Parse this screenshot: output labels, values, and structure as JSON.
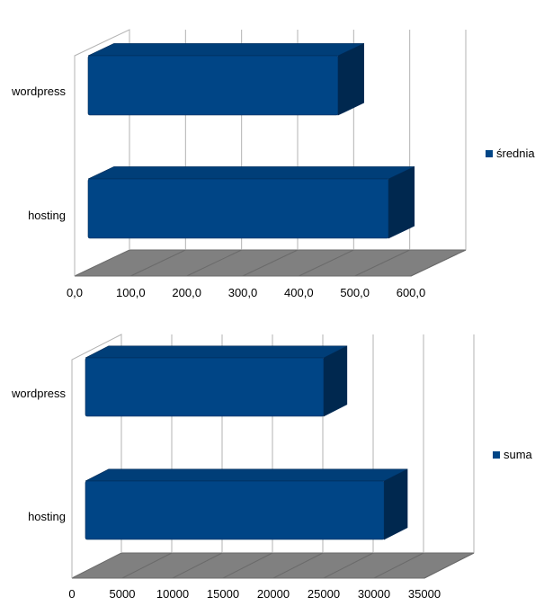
{
  "colors": {
    "bar_front": "#004586",
    "bar_top": "#003e78",
    "bar_side": "#00284f",
    "bar_edge": "#002a55",
    "floor": "#808080",
    "floor_stroke": "#6a6a6a",
    "grid": "#b3b3b3",
    "wall": "#b3b3b3"
  },
  "chart_data": [
    {
      "type": "bar",
      "orientation": "horizontal",
      "style": "3d",
      "categories": [
        "wordpress",
        "hosting"
      ],
      "series": [
        {
          "name": "średnia",
          "values": [
            470,
            560
          ]
        }
      ],
      "xlim": [
        0,
        600
      ],
      "xticks": [
        "0,0",
        "100,0",
        "200,0",
        "300,0",
        "400,0",
        "500,0",
        "600,0"
      ],
      "grid": true,
      "legend": "right"
    },
    {
      "type": "bar",
      "orientation": "horizontal",
      "style": "3d",
      "categories": [
        "wordpress",
        "hosting"
      ],
      "series": [
        {
          "name": "suma",
          "values": [
            25000,
            31000
          ]
        }
      ],
      "xlim": [
        0,
        35000
      ],
      "xticks": [
        "0",
        "5000",
        "10000",
        "15000",
        "20000",
        "25000",
        "30000",
        "35000"
      ],
      "grid": true,
      "legend": "right"
    }
  ]
}
